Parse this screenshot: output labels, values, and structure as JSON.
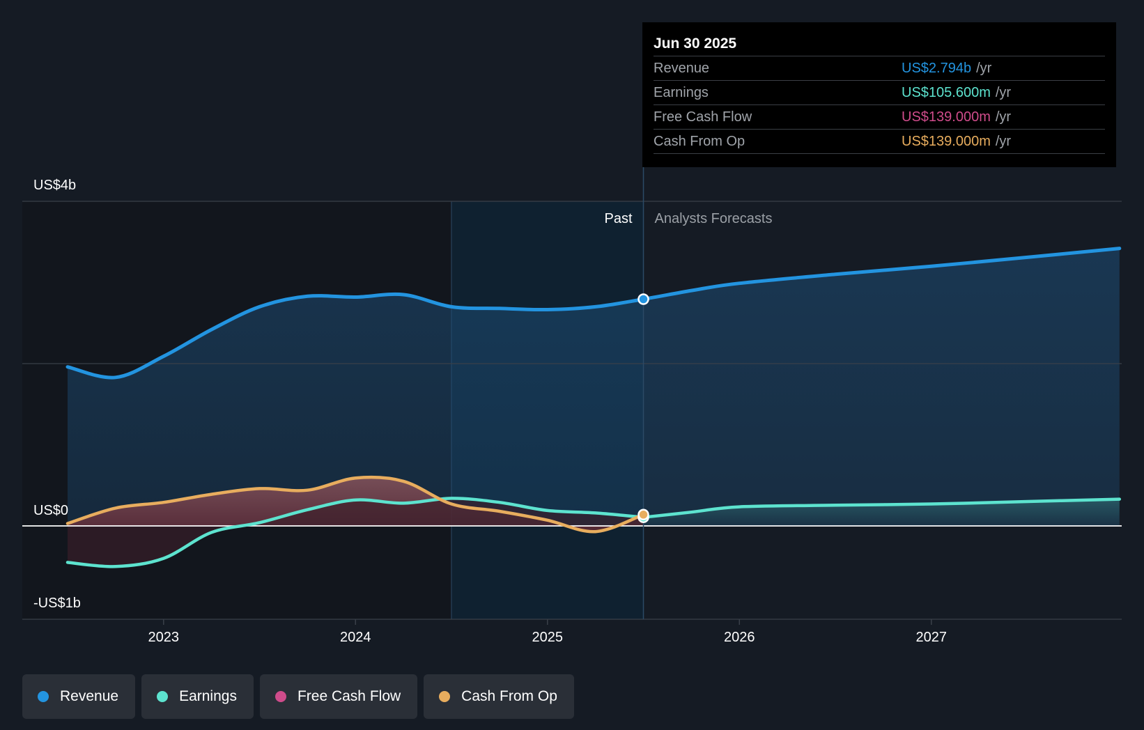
{
  "chart_data": {
    "type": "line",
    "y_unit_labels": {
      "top": "US$4b",
      "zero": "US$0",
      "bottom": "-US$1b"
    },
    "ylim": [
      -1000,
      4000
    ],
    "x_ticks": [
      "2023",
      "2024",
      "2025",
      "2026",
      "2027"
    ],
    "zones": {
      "past_label": "Past",
      "forecast_label": "Analysts Forecasts",
      "split_x": 2025.5
    },
    "series": [
      {
        "name": "Revenue",
        "color": "#2394e0",
        "points": [
          [
            2022.5,
            1960
          ],
          [
            2022.75,
            1830
          ],
          [
            2023.0,
            2090
          ],
          [
            2023.25,
            2420
          ],
          [
            2023.5,
            2700
          ],
          [
            2023.75,
            2830
          ],
          [
            2024.0,
            2820
          ],
          [
            2024.25,
            2850
          ],
          [
            2024.5,
            2700
          ],
          [
            2024.75,
            2680
          ],
          [
            2025.0,
            2665
          ],
          [
            2025.25,
            2700
          ],
          [
            2025.5,
            2794
          ]
        ],
        "forecast": [
          [
            2025.75,
            2900
          ],
          [
            2026.0,
            2990
          ],
          [
            2026.5,
            3100
          ],
          [
            2027.0,
            3200
          ],
          [
            2027.5,
            3310
          ],
          [
            2027.98,
            3420
          ]
        ]
      },
      {
        "name": "Earnings",
        "color": "#5de3cf",
        "points": [
          [
            2022.5,
            -450
          ],
          [
            2022.75,
            -500
          ],
          [
            2023.0,
            -400
          ],
          [
            2023.25,
            -80
          ],
          [
            2023.5,
            40
          ],
          [
            2023.75,
            200
          ],
          [
            2024.0,
            320
          ],
          [
            2024.25,
            280
          ],
          [
            2024.5,
            340
          ],
          [
            2024.75,
            290
          ],
          [
            2025.0,
            190
          ],
          [
            2025.25,
            160
          ],
          [
            2025.5,
            105.6
          ]
        ],
        "forecast": [
          [
            2025.75,
            170
          ],
          [
            2026.0,
            235
          ],
          [
            2026.5,
            255
          ],
          [
            2027.0,
            270
          ],
          [
            2027.5,
            300
          ],
          [
            2027.98,
            330
          ]
        ]
      },
      {
        "name": "Free Cash Flow",
        "color": "#cf4c8b",
        "points": [
          [
            2022.5,
            30
          ],
          [
            2022.75,
            220
          ],
          [
            2023.0,
            290
          ],
          [
            2023.25,
            390
          ],
          [
            2023.5,
            460
          ],
          [
            2023.75,
            440
          ],
          [
            2024.0,
            590
          ],
          [
            2024.25,
            550
          ],
          [
            2024.5,
            270
          ],
          [
            2024.75,
            180
          ],
          [
            2025.0,
            70
          ],
          [
            2025.25,
            -70
          ],
          [
            2025.5,
            139
          ]
        ]
      },
      {
        "name": "Cash From Op",
        "color": "#e8ad5e",
        "points": [
          [
            2022.5,
            30
          ],
          [
            2022.75,
            220
          ],
          [
            2023.0,
            290
          ],
          [
            2023.25,
            390
          ],
          [
            2023.5,
            460
          ],
          [
            2023.75,
            440
          ],
          [
            2024.0,
            590
          ],
          [
            2024.25,
            550
          ],
          [
            2024.5,
            270
          ],
          [
            2024.75,
            180
          ],
          [
            2025.0,
            70
          ],
          [
            2025.25,
            -70
          ],
          [
            2025.5,
            139
          ]
        ]
      }
    ]
  },
  "tooltip": {
    "date": "Jun 30 2025",
    "rows": [
      {
        "label": "Revenue",
        "value": "US$2.794b",
        "unit": "/yr",
        "color": "#2394e0"
      },
      {
        "label": "Earnings",
        "value": "US$105.600m",
        "unit": "/yr",
        "color": "#5de3cf"
      },
      {
        "label": "Free Cash Flow",
        "value": "US$139.000m",
        "unit": "/yr",
        "color": "#cf4c8b"
      },
      {
        "label": "Cash From Op",
        "value": "US$139.000m",
        "unit": "/yr",
        "color": "#e8ad5e"
      }
    ]
  },
  "legend": [
    {
      "label": "Revenue",
      "color": "#2394e0"
    },
    {
      "label": "Earnings",
      "color": "#5de3cf"
    },
    {
      "label": "Free Cash Flow",
      "color": "#cf4c8b"
    },
    {
      "label": "Cash From Op",
      "color": "#e8ad5e"
    }
  ]
}
